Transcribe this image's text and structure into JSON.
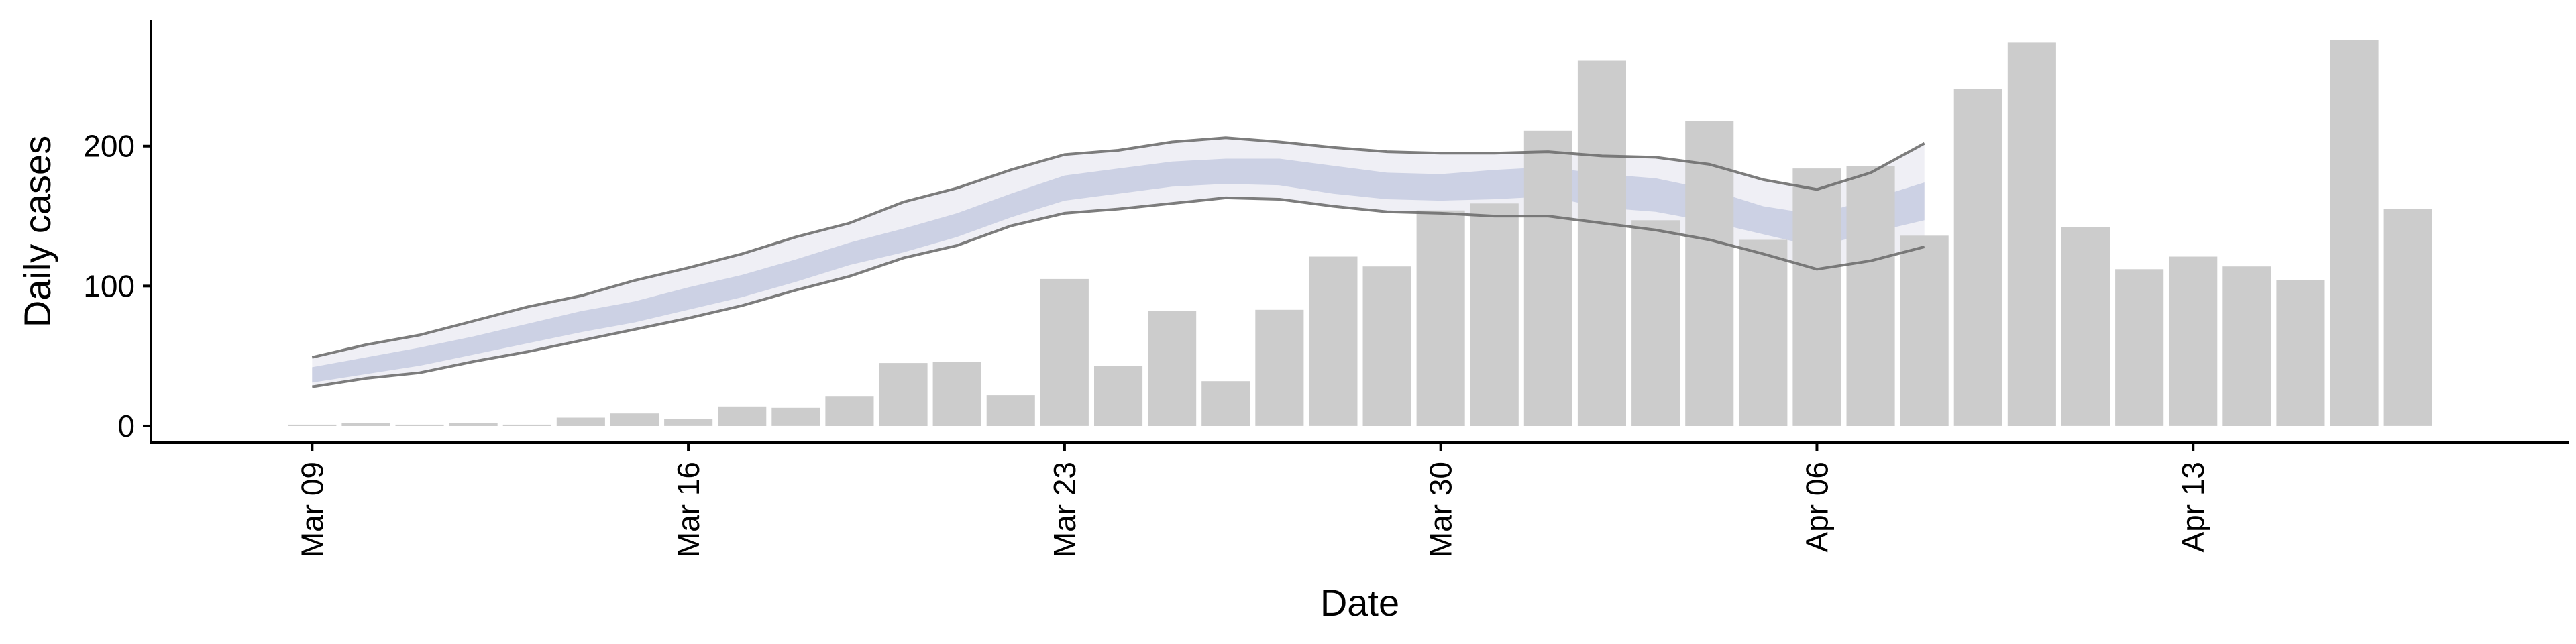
{
  "chart_data": {
    "type": "bar",
    "xlabel": "Date",
    "ylabel": "Daily cases",
    "ylim": [
      -12,
      290
    ],
    "y_ticks": [
      0,
      100,
      200
    ],
    "x_ticks": [
      {
        "date": "2020-03-09",
        "label": "Mar 09"
      },
      {
        "date": "2020-03-16",
        "label": "Mar 16"
      },
      {
        "date": "2020-03-23",
        "label": "Mar 23"
      },
      {
        "date": "2020-03-30",
        "label": "Mar 30"
      },
      {
        "date": "2020-04-06",
        "label": "Apr 06"
      },
      {
        "date": "2020-04-13",
        "label": "Apr 13"
      }
    ],
    "xlim": [
      "2020-03-06",
      "2020-04-20"
    ],
    "bars": {
      "color": "#cccccc",
      "dates": [
        "2020-03-09",
        "2020-03-10",
        "2020-03-11",
        "2020-03-12",
        "2020-03-13",
        "2020-03-14",
        "2020-03-15",
        "2020-03-16",
        "2020-03-17",
        "2020-03-18",
        "2020-03-19",
        "2020-03-20",
        "2020-03-21",
        "2020-03-22",
        "2020-03-23",
        "2020-03-24",
        "2020-03-25",
        "2020-03-26",
        "2020-03-27",
        "2020-03-28",
        "2020-03-29",
        "2020-03-30",
        "2020-03-31",
        "2020-04-01",
        "2020-04-02",
        "2020-04-03",
        "2020-04-04",
        "2020-04-05",
        "2020-04-06",
        "2020-04-07",
        "2020-04-08",
        "2020-04-09",
        "2020-04-10",
        "2020-04-11",
        "2020-04-12",
        "2020-04-13",
        "2020-04-14",
        "2020-04-15",
        "2020-04-16",
        "2020-04-17"
      ],
      "values": [
        1,
        2,
        1,
        2,
        1,
        6,
        9,
        5,
        14,
        13,
        21,
        45,
        46,
        22,
        105,
        43,
        82,
        32,
        83,
        121,
        114,
        154,
        159,
        211,
        261,
        147,
        218,
        133,
        184,
        186,
        136,
        241,
        274,
        142,
        112,
        121,
        114,
        104,
        276,
        155
      ]
    },
    "estimate": {
      "dates": [
        "2020-03-09",
        "2020-03-10",
        "2020-03-11",
        "2020-03-12",
        "2020-03-13",
        "2020-03-14",
        "2020-03-15",
        "2020-03-16",
        "2020-03-17",
        "2020-03-18",
        "2020-03-19",
        "2020-03-20",
        "2020-03-21",
        "2020-03-22",
        "2020-03-23",
        "2020-03-24",
        "2020-03-25",
        "2020-03-26",
        "2020-03-27",
        "2020-03-28",
        "2020-03-29",
        "2020-03-30",
        "2020-03-31",
        "2020-04-01",
        "2020-04-02",
        "2020-04-03",
        "2020-04-04",
        "2020-04-05",
        "2020-04-06",
        "2020-04-07",
        "2020-04-08"
      ],
      "outer_upper": [
        49,
        58,
        65,
        75,
        85,
        93,
        104,
        113,
        123,
        135,
        145,
        160,
        170,
        183,
        194,
        197,
        203,
        206,
        203,
        199,
        196,
        195,
        195,
        196,
        193,
        192,
        187,
        176,
        169,
        181,
        202
      ],
      "outer_lower": [
        28,
        34,
        38,
        46,
        53,
        61,
        69,
        77,
        86,
        97,
        107,
        120,
        129,
        143,
        152,
        155,
        159,
        163,
        162,
        157,
        153,
        152,
        150,
        150,
        145,
        140,
        133,
        123,
        112,
        118,
        128
      ],
      "inner_upper": [
        42,
        49,
        56,
        64,
        73,
        82,
        89,
        99,
        108,
        119,
        131,
        141,
        152,
        166,
        179,
        184,
        189,
        191,
        191,
        186,
        181,
        180,
        183,
        185,
        180,
        177,
        169,
        157,
        151,
        162,
        174
      ],
      "inner_lower": [
        31,
        37,
        43,
        51,
        59,
        67,
        74,
        83,
        92,
        103,
        115,
        124,
        135,
        149,
        161,
        166,
        171,
        173,
        172,
        166,
        162,
        161,
        162,
        164,
        156,
        153,
        146,
        137,
        128,
        138,
        147
      ],
      "outer_color": "#ececf3",
      "inner_color": "#c5cbe0",
      "line_color": "#6f6f6f"
    }
  }
}
